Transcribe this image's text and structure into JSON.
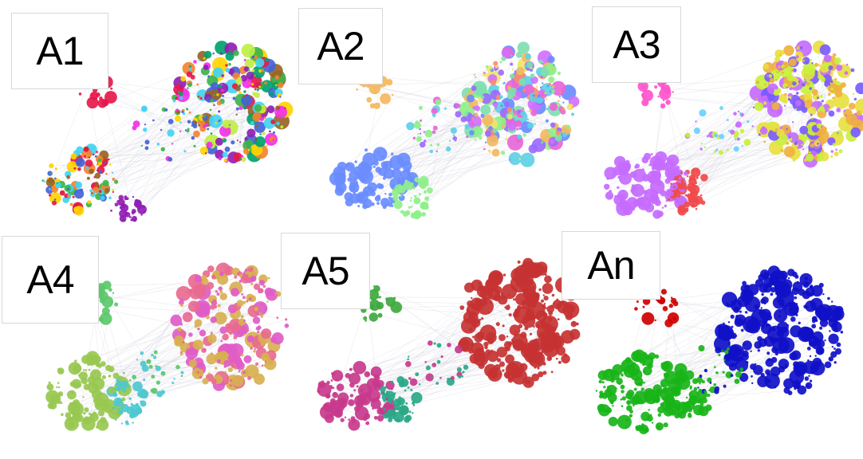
{
  "panels": [
    {
      "label": "A1",
      "scheme": "multi",
      "palette": [
        "#e6194b",
        "#3cb44b",
        "#ffd400",
        "#4363d8",
        "#f58231",
        "#911eb4",
        "#42d4f4",
        "#f032e6",
        "#bfef45",
        "#9a6324",
        "#00a36c",
        "#dc143c"
      ]
    },
    {
      "label": "A2",
      "scheme": "multi2",
      "palette": [
        "#6a8cff",
        "#9b6bff",
        "#e866d8",
        "#5ed0e6",
        "#8ef08a",
        "#f0e46a",
        "#ff8a6a",
        "#f4b860",
        "#d070ff",
        "#7ee0b0"
      ]
    },
    {
      "label": "A3",
      "scheme": "multi3",
      "palette": [
        "#ff55cc",
        "#c66bff",
        "#f04a4a",
        "#7a5cff",
        "#c8f03c",
        "#e8e040",
        "#f0b040",
        "#5a8cff",
        "#6ad0ff"
      ]
    },
    {
      "label": "A4",
      "scheme": "four",
      "palette": [
        "#5cc86a",
        "#98c850",
        "#4ec8d0",
        "#d8b050",
        "#e05cc8",
        "#e86a90"
      ]
    },
    {
      "label": "A5",
      "scheme": "five",
      "palette": [
        "#3fa83f",
        "#c83a8c",
        "#2aa888",
        "#c63232",
        "#d85a5a"
      ]
    },
    {
      "label": "An",
      "scheme": "final",
      "palette": [
        "#d00000",
        "#18b418",
        "#1010c8"
      ]
    }
  ]
}
